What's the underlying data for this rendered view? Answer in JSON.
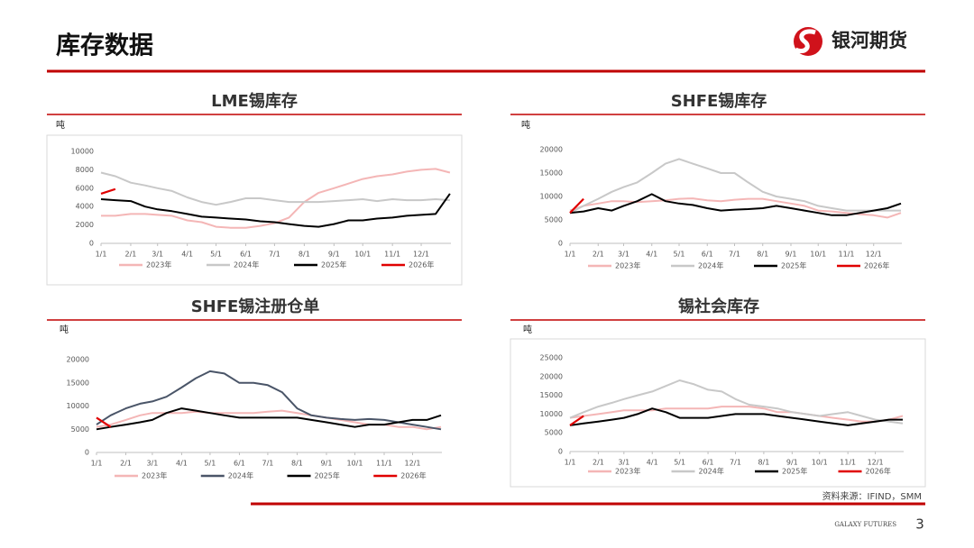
{
  "header": {
    "title": "库存数据",
    "logo_text": "银河期货"
  },
  "footer": {
    "source": "资料来源：IFIND，SMM",
    "brand": "GALAXY FUTURES",
    "page": "3"
  },
  "chart_data": [
    {
      "type": "line",
      "title": "LME锡库存",
      "unit": "吨",
      "x": [
        0,
        15,
        31,
        46,
        59,
        74,
        90,
        105,
        120,
        135,
        151,
        166,
        181,
        196,
        212,
        227,
        243,
        258,
        273,
        288,
        304,
        319,
        334,
        349,
        364
      ],
      "xlim": [
        0,
        365
      ],
      "xticks": [
        {
          "value": 0,
          "label": "1/1"
        },
        {
          "value": 31,
          "label": "2/1"
        },
        {
          "value": 59,
          "label": "3/1"
        },
        {
          "value": 90,
          "label": "4/1"
        },
        {
          "value": 120,
          "label": "5/1"
        },
        {
          "value": 151,
          "label": "6/1"
        },
        {
          "value": 181,
          "label": "7/1"
        },
        {
          "value": 212,
          "label": "8/1"
        },
        {
          "value": 243,
          "label": "9/1"
        },
        {
          "value": 273,
          "label": "10/1"
        },
        {
          "value": 304,
          "label": "11/1"
        },
        {
          "value": 334,
          "label": "12/1"
        }
      ],
      "ylim": [
        0,
        10000
      ],
      "yticks": [
        0,
        2000,
        4000,
        6000,
        8000,
        10000
      ],
      "series": [
        {
          "name": "2023年",
          "color": "#f4b6b6",
          "values": [
            3000,
            3000,
            3200,
            3200,
            3100,
            3000,
            2500,
            2300,
            1800,
            1700,
            1700,
            1900,
            2200,
            2800,
            4500,
            5500,
            6000,
            6500,
            7000,
            7300,
            7500,
            7800,
            8000,
            8100,
            7700
          ]
        },
        {
          "name": "2024年",
          "color": "#c8c8c8",
          "values": [
            7700,
            7300,
            6600,
            6300,
            6000,
            5700,
            5000,
            4500,
            4200,
            4500,
            4900,
            4900,
            4700,
            4500,
            4500,
            4500,
            4600,
            4700,
            4800,
            4600,
            4800,
            4700,
            4700,
            4800,
            4700
          ]
        },
        {
          "name": "2025年",
          "color": "#000000",
          "values": [
            4800,
            4700,
            4600,
            4000,
            3700,
            3500,
            3200,
            2900,
            2800,
            2700,
            2600,
            2400,
            2300,
            2100,
            1900,
            1800,
            2100,
            2500,
            2500,
            2700,
            2800,
            3000,
            3100,
            3200,
            5400
          ]
        },
        {
          "name": "2026年",
          "color": "#e00000",
          "values": [
            5400,
            5900,
            null,
            null,
            null,
            null,
            null,
            null,
            null,
            null,
            null,
            null,
            null,
            null,
            null,
            null,
            null,
            null,
            null,
            null,
            null,
            null,
            null,
            null,
            null
          ]
        }
      ]
    },
    {
      "type": "line",
      "title": "SHFE锡库存",
      "unit": "吨",
      "x": [
        0,
        15,
        31,
        46,
        59,
        74,
        90,
        105,
        120,
        135,
        151,
        166,
        181,
        196,
        212,
        227,
        243,
        258,
        273,
        288,
        304,
        319,
        334,
        349,
        364
      ],
      "xlim": [
        0,
        365
      ],
      "xticks": [
        {
          "value": 0,
          "label": "1/1"
        },
        {
          "value": 31,
          "label": "2/1"
        },
        {
          "value": 59,
          "label": "3/1"
        },
        {
          "value": 90,
          "label": "4/1"
        },
        {
          "value": 120,
          "label": "5/1"
        },
        {
          "value": 151,
          "label": "6/1"
        },
        {
          "value": 181,
          "label": "7/1"
        },
        {
          "value": 212,
          "label": "8/1"
        },
        {
          "value": 243,
          "label": "9/1"
        },
        {
          "value": 273,
          "label": "10/1"
        },
        {
          "value": 304,
          "label": "11/1"
        },
        {
          "value": 334,
          "label": "12/1"
        }
      ],
      "ylim": [
        0,
        20000
      ],
      "yticks": [
        0,
        5000,
        10000,
        15000,
        20000
      ],
      "series": [
        {
          "name": "2023年",
          "color": "#f4b6b6",
          "values": [
            7000,
            8000,
            8500,
            9000,
            9000,
            8800,
            9000,
            9200,
            9500,
            9600,
            9200,
            9000,
            9300,
            9500,
            9500,
            9000,
            8500,
            8000,
            7000,
            6800,
            6500,
            6200,
            6000,
            5500,
            6500
          ]
        },
        {
          "name": "2024年",
          "color": "#c8c8c8",
          "values": [
            6500,
            8000,
            9500,
            11000,
            12000,
            13000,
            15000,
            17000,
            18000,
            17000,
            16000,
            15000,
            15000,
            13000,
            11000,
            10000,
            9500,
            9000,
            8000,
            7500,
            7000,
            7000,
            7000,
            7000,
            7000
          ]
        },
        {
          "name": "2025年",
          "color": "#000000",
          "values": [
            6500,
            6800,
            7500,
            7000,
            8000,
            9000,
            10500,
            9000,
            8500,
            8200,
            7500,
            7000,
            7200,
            7300,
            7500,
            8000,
            7500,
            7000,
            6500,
            6000,
            6000,
            6500,
            7000,
            7500,
            8500
          ]
        },
        {
          "name": "2026年",
          "color": "#e00000",
          "values": [
            6500,
            9500,
            null,
            null,
            null,
            null,
            null,
            null,
            null,
            null,
            null,
            null,
            null,
            null,
            null,
            null,
            null,
            null,
            null,
            null,
            null,
            null,
            null,
            null,
            null
          ]
        }
      ]
    },
    {
      "type": "line",
      "title": "SHFE锡注册仓单",
      "unit": "吨",
      "x": [
        0,
        15,
        31,
        46,
        59,
        74,
        90,
        105,
        120,
        135,
        151,
        166,
        181,
        196,
        212,
        227,
        243,
        258,
        273,
        288,
        304,
        319,
        334,
        349,
        364
      ],
      "xlim": [
        0,
        365
      ],
      "xticks": [
        {
          "value": 0,
          "label": "1/1"
        },
        {
          "value": 31,
          "label": "2/1"
        },
        {
          "value": 59,
          "label": "3/1"
        },
        {
          "value": 90,
          "label": "4/1"
        },
        {
          "value": 120,
          "label": "5/1"
        },
        {
          "value": 151,
          "label": "6/1"
        },
        {
          "value": 181,
          "label": "7/1"
        },
        {
          "value": 212,
          "label": "8/1"
        },
        {
          "value": 243,
          "label": "9/1"
        },
        {
          "value": 273,
          "label": "10/1"
        },
        {
          "value": 304,
          "label": "11/1"
        },
        {
          "value": 334,
          "label": "12/1"
        }
      ],
      "ylim": [
        0,
        20000
      ],
      "yticks": [
        0,
        5000,
        10000,
        15000,
        20000
      ],
      "series": [
        {
          "name": "2023年",
          "color": "#f4b6b6",
          "values": [
            5500,
            6000,
            7000,
            8000,
            8500,
            8500,
            8500,
            8800,
            8500,
            8500,
            8500,
            8500,
            8800,
            9000,
            8500,
            8000,
            7500,
            7000,
            6500,
            6000,
            6000,
            5500,
            5500,
            5000,
            5500
          ]
        },
        {
          "name": "2024年",
          "color": "#4a5568",
          "values": [
            6000,
            8000,
            9500,
            10500,
            11000,
            12000,
            14000,
            16000,
            17500,
            17000,
            15000,
            15000,
            14500,
            13000,
            9500,
            8000,
            7500,
            7200,
            7000,
            7200,
            7000,
            6500,
            6000,
            5500,
            5000
          ]
        },
        {
          "name": "2025年",
          "color": "#000000",
          "values": [
            5000,
            5500,
            6000,
            6500,
            7000,
            8500,
            9500,
            9000,
            8500,
            8000,
            7500,
            7500,
            7500,
            7500,
            7500,
            7000,
            6500,
            6000,
            5500,
            6000,
            6000,
            6500,
            7000,
            7000,
            8000
          ]
        },
        {
          "name": "2026年",
          "color": "#e00000",
          "values": [
            7500,
            5500,
            null,
            null,
            null,
            null,
            null,
            null,
            null,
            null,
            null,
            null,
            null,
            null,
            null,
            null,
            null,
            null,
            null,
            null,
            null,
            null,
            null,
            null,
            null
          ]
        }
      ]
    },
    {
      "type": "line",
      "title": "锡社会库存",
      "unit": "吨",
      "x": [
        0,
        15,
        31,
        46,
        59,
        74,
        90,
        105,
        120,
        135,
        151,
        166,
        181,
        196,
        212,
        227,
        243,
        258,
        273,
        288,
        304,
        319,
        334,
        349,
        364
      ],
      "xlim": [
        0,
        365
      ],
      "xticks": [
        {
          "value": 0,
          "label": "1/1"
        },
        {
          "value": 31,
          "label": "2/1"
        },
        {
          "value": 59,
          "label": "3/1"
        },
        {
          "value": 90,
          "label": "4/1"
        },
        {
          "value": 120,
          "label": "5/1"
        },
        {
          "value": 151,
          "label": "6/1"
        },
        {
          "value": 181,
          "label": "7/1"
        },
        {
          "value": 212,
          "label": "8/1"
        },
        {
          "value": 243,
          "label": "9/1"
        },
        {
          "value": 273,
          "label": "10/1"
        },
        {
          "value": 304,
          "label": "11/1"
        },
        {
          "value": 334,
          "label": "12/1"
        }
      ],
      "ylim": [
        0,
        25000
      ],
      "yticks": [
        0,
        5000,
        10000,
        15000,
        20000,
        25000
      ],
      "series": [
        {
          "name": "2023年",
          "color": "#f4b6b6",
          "values": [
            9000,
            9500,
            10000,
            10500,
            11000,
            11000,
            11000,
            11500,
            11500,
            11500,
            11500,
            12000,
            12000,
            12000,
            11500,
            10500,
            10500,
            10000,
            9500,
            9000,
            8500,
            8000,
            8000,
            8500,
            9500
          ]
        },
        {
          "name": "2024年",
          "color": "#c8c8c8",
          "values": [
            9000,
            10500,
            12000,
            13000,
            14000,
            15000,
            16000,
            17500,
            19000,
            18000,
            16500,
            16000,
            14000,
            12500,
            12000,
            11500,
            10500,
            10000,
            9500,
            10000,
            10500,
            9500,
            8500,
            8000,
            7500
          ]
        },
        {
          "name": "2025年",
          "color": "#000000",
          "values": [
            7000,
            7500,
            8000,
            8500,
            9000,
            10000,
            11500,
            10500,
            9000,
            9000,
            9000,
            9500,
            10000,
            10000,
            10000,
            9500,
            9000,
            8500,
            8000,
            7500,
            7000,
            7500,
            8000,
            8500,
            8500
          ]
        },
        {
          "name": "2026年",
          "color": "#e00000",
          "values": [
            7000,
            9500,
            null,
            null,
            null,
            null,
            null,
            null,
            null,
            null,
            null,
            null,
            null,
            null,
            null,
            null,
            null,
            null,
            null,
            null,
            null,
            null,
            null,
            null,
            null
          ]
        }
      ]
    }
  ]
}
